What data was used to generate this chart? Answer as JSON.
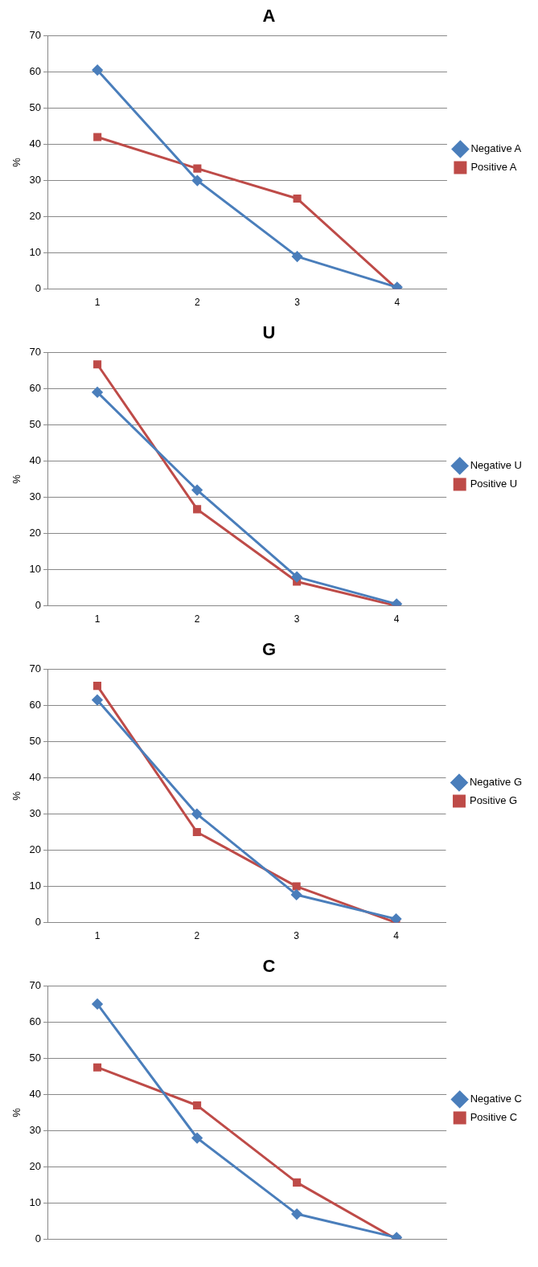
{
  "chart_data": [
    {
      "type": "line",
      "title": "A",
      "ylabel": "%",
      "categories": [
        "1",
        "2",
        "3",
        "4"
      ],
      "ylim": [
        0,
        70
      ],
      "yticks": [
        0,
        10,
        20,
        30,
        40,
        50,
        60,
        70
      ],
      "grid": "y",
      "legend": "right",
      "series": [
        {
          "name": "Negative A",
          "color": "#4a7ebb",
          "marker": "diamond",
          "values": [
            60.5,
            30,
            9,
            0.5
          ]
        },
        {
          "name": "Positive A",
          "color": "#be4b48",
          "marker": "square",
          "values": [
            42,
            33.3,
            25,
            0
          ]
        }
      ]
    },
    {
      "type": "line",
      "title": "U",
      "ylabel": "%",
      "categories": [
        "1",
        "2",
        "3",
        "4"
      ],
      "ylim": [
        0,
        70
      ],
      "yticks": [
        0,
        10,
        20,
        30,
        40,
        50,
        60,
        70
      ],
      "grid": "y",
      "legend": "right",
      "series": [
        {
          "name": "Negative U",
          "color": "#4a7ebb",
          "marker": "diamond",
          "values": [
            59,
            32,
            8,
            0.5
          ]
        },
        {
          "name": "Positive U",
          "color": "#be4b48",
          "marker": "square",
          "values": [
            66.7,
            26.7,
            6.7,
            0
          ]
        }
      ]
    },
    {
      "type": "line",
      "title": "G",
      "ylabel": "%",
      "categories": [
        "1",
        "2",
        "3",
        "4"
      ],
      "ylim": [
        0,
        70
      ],
      "yticks": [
        0,
        10,
        20,
        30,
        40,
        50,
        60,
        70
      ],
      "grid": "y",
      "legend": "right",
      "series": [
        {
          "name": "Negative G",
          "color": "#4a7ebb",
          "marker": "diamond",
          "values": [
            61.5,
            30,
            7.7,
            1
          ]
        },
        {
          "name": "Positive G",
          "color": "#be4b48",
          "marker": "square",
          "values": [
            65.4,
            25,
            10,
            0
          ]
        }
      ]
    },
    {
      "type": "line",
      "title": "C",
      "ylabel": "%",
      "categories": [
        null,
        null,
        null,
        null
      ],
      "ylim": [
        0,
        70
      ],
      "yticks": [
        0,
        10,
        20,
        30,
        40,
        50,
        60,
        70
      ],
      "grid": "y",
      "legend": "right",
      "series": [
        {
          "name": "Negative C",
          "color": "#4a7ebb",
          "marker": "diamond",
          "values": [
            65,
            28,
            7,
            0.5
          ]
        },
        {
          "name": "Positive C",
          "color": "#be4b48",
          "marker": "square",
          "values": [
            47.5,
            37,
            15.7,
            0
          ]
        }
      ]
    }
  ]
}
